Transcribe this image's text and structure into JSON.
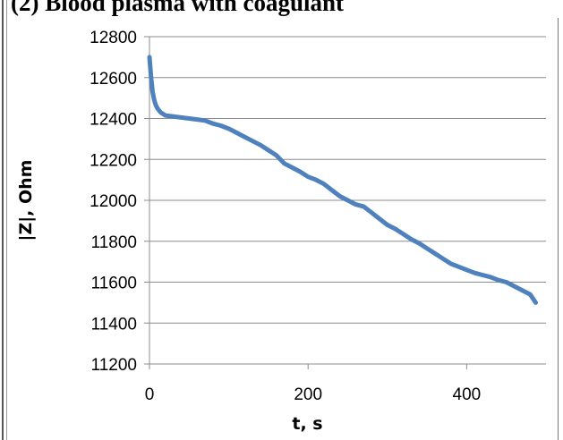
{
  "header": {
    "title": "(2) Blood plasma with coagulant"
  },
  "chart_data": {
    "type": "line",
    "title": "(2) Blood plasma with coagulant",
    "xlabel": "t, s",
    "ylabel": "|Z|, Ohm",
    "xlim": [
      0,
      500
    ],
    "ylim": [
      11200,
      12800
    ],
    "xticks": [
      0,
      200,
      400
    ],
    "yticks": [
      11200,
      11400,
      11600,
      11800,
      12000,
      12200,
      12400,
      12600,
      12800
    ],
    "grid": "horizontal",
    "legend": "none",
    "series": [
      {
        "color": "#4f81bd",
        "x": [
          0,
          2,
          4,
          6,
          8,
          10,
          14,
          20,
          30,
          40,
          50,
          60,
          70,
          80,
          90,
          100,
          110,
          120,
          130,
          140,
          150,
          160,
          170,
          180,
          190,
          200,
          210,
          220,
          230,
          240,
          250,
          260,
          270,
          280,
          290,
          300,
          310,
          320,
          330,
          340,
          350,
          360,
          370,
          380,
          390,
          400,
          410,
          420,
          430,
          440,
          450,
          460,
          470,
          480,
          487
        ],
        "y": [
          12700,
          12600,
          12530,
          12490,
          12465,
          12450,
          12430,
          12415,
          12410,
          12405,
          12400,
          12395,
          12390,
          12375,
          12365,
          12350,
          12330,
          12310,
          12290,
          12270,
          12245,
          12220,
          12180,
          12160,
          12140,
          12115,
          12100,
          12080,
          12050,
          12020,
          12000,
          11980,
          11970,
          11940,
          11910,
          11880,
          11860,
          11835,
          11810,
          11790,
          11765,
          11740,
          11715,
          11690,
          11675,
          11660,
          11645,
          11635,
          11625,
          11610,
          11600,
          11580,
          11560,
          11540,
          11500
        ]
      }
    ]
  }
}
